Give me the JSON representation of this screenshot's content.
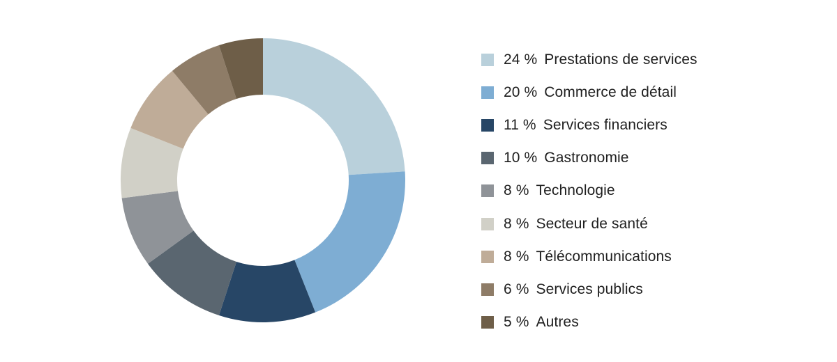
{
  "chart_data": {
    "type": "pie",
    "donut": true,
    "legend_position": "right",
    "series": [
      {
        "label": "Prestations de services",
        "pct_text": "24 %",
        "value": 24,
        "color": "#b9d0db"
      },
      {
        "label": "Commerce de détail",
        "pct_text": "20 %",
        "value": 20,
        "color": "#7eadd3"
      },
      {
        "label": "Services financiers",
        "pct_text": "11 %",
        "value": 11,
        "color": "#274666"
      },
      {
        "label": "Gastronomie",
        "pct_text": "10 %",
        "value": 10,
        "color": "#5a6670"
      },
      {
        "label": "Technologie",
        "pct_text": "8 %",
        "value": 8,
        "color": "#8f9398"
      },
      {
        "label": "Secteur de santé",
        "pct_text": "8 %",
        "value": 8,
        "color": "#d1d0c7"
      },
      {
        "label": "Télécommunications",
        "pct_text": "8 %",
        "value": 8,
        "color": "#bfac98"
      },
      {
        "label": "Services publics",
        "pct_text": "6 %",
        "value": 6,
        "color": "#8e7c67"
      },
      {
        "label": "Autres",
        "pct_text": "5 %",
        "value": 5,
        "color": "#6e5e48"
      }
    ]
  }
}
